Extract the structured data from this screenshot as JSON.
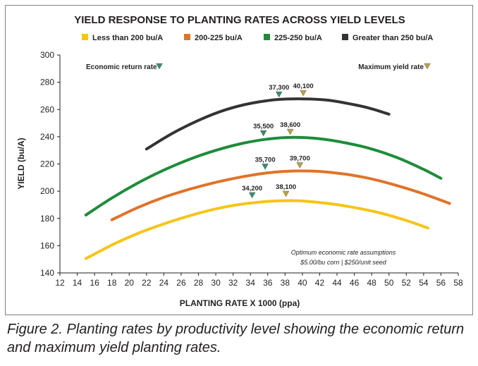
{
  "caption": "Figure 2. Planting rates by productivity level showing the economic return and maximum yield planting rates.",
  "chart_data": {
    "type": "line",
    "title": "YIELD RESPONSE TO PLANTING RATES ACROSS YIELD LEVELS",
    "xlabel": "PLANTING RATE X 1000 (ppa)",
    "ylabel": "YIELD (bu/A)",
    "xlim": [
      12,
      58
    ],
    "ylim": [
      140,
      300
    ],
    "xticks": [
      "12",
      "14",
      "16",
      "18",
      "20",
      "22",
      "24",
      "26",
      "28",
      "30",
      "32",
      "34",
      "36",
      "38",
      "40",
      "42",
      "44",
      "46",
      "48",
      "50",
      "52",
      "54",
      "56",
      "58"
    ],
    "yticks": [
      "140",
      "160",
      "180",
      "200",
      "220",
      "240",
      "260",
      "280",
      "300"
    ],
    "grid": false,
    "legend_position": "top",
    "series": [
      {
        "name": "Less than 200 bu/A",
        "color": "#f5c518",
        "x": [
          15,
          18,
          21,
          24,
          27,
          30,
          33,
          36,
          38,
          40,
          43,
          46,
          49,
          52,
          54.5
        ],
        "y": [
          150.5,
          160.5,
          169,
          176,
          182,
          187,
          190.5,
          192.5,
          193,
          192.8,
          191,
          188,
          184,
          178.5,
          173
        ]
      },
      {
        "name": "200-225 bu/A",
        "color": "#e0732a",
        "x": [
          18,
          21,
          24,
          27,
          30,
          33,
          36,
          39,
          42,
          45,
          48,
          51,
          54,
          57
        ],
        "y": [
          179,
          188,
          195.5,
          201.5,
          206.5,
          210.5,
          213.5,
          214.8,
          214.5,
          212.5,
          209,
          204,
          198,
          191
        ]
      },
      {
        "name": "225-250 bu/A",
        "color": "#1e8c3a",
        "x": [
          15,
          18,
          21,
          24,
          27,
          30,
          33,
          36,
          39,
          42,
          45,
          48,
          51,
          54,
          56
        ],
        "y": [
          182.5,
          195,
          206,
          215.5,
          223.5,
          230,
          235,
          238.3,
          239.5,
          238.5,
          235.5,
          231,
          224.5,
          216,
          209.5
        ]
      },
      {
        "name": "Greater than 250 bu/A",
        "color": "#333333",
        "x": [
          22,
          25,
          28,
          31,
          34,
          37,
          40,
          43,
          46,
          48,
          50
        ],
        "y": [
          231,
          242.5,
          252,
          259.5,
          264.5,
          267.2,
          267.8,
          266.8,
          263.5,
          260.5,
          256.5
        ]
      }
    ],
    "markers": [
      {
        "series": "Less than 200 bu/A",
        "kind": "economic",
        "label": "34,200",
        "x": 34.2,
        "y": 197,
        "color": "#3a8c6e"
      },
      {
        "series": "Less than 200 bu/A",
        "kind": "maximum",
        "label": "38,100",
        "x": 38.1,
        "y": 198,
        "color": "#b8a14a"
      },
      {
        "series": "200-225 bu/A",
        "kind": "economic",
        "label": "35,700",
        "x": 35.7,
        "y": 218,
        "color": "#3a8c6e"
      },
      {
        "series": "200-225 bu/A",
        "kind": "maximum",
        "label": "39,700",
        "x": 39.7,
        "y": 219,
        "color": "#b8a14a"
      },
      {
        "series": "225-250 bu/A",
        "kind": "economic",
        "label": "35,500",
        "x": 35.5,
        "y": 242.5,
        "color": "#3a8c6e"
      },
      {
        "series": "225-250 bu/A",
        "kind": "maximum",
        "label": "38,600",
        "x": 38.6,
        "y": 243.5,
        "color": "#b8a14a"
      },
      {
        "series": "Greater than 250 bu/A",
        "kind": "economic",
        "label": "37,300",
        "x": 37.3,
        "y": 271,
        "color": "#3a8c6e"
      },
      {
        "series": "Greater than 250 bu/A",
        "kind": "maximum",
        "label": "40,100",
        "x": 40.1,
        "y": 272,
        "color": "#b8a14a"
      }
    ],
    "annotations": {
      "economic_label": "Economic return rate",
      "economic_color": "#3a8c6e",
      "maximum_label": "Maximum yield rate",
      "maximum_color": "#b8a14a",
      "assumptions_line1": "Optimum economic rate assumptions",
      "assumptions_line2": "$5.00/bu corn | $250/unit seed"
    }
  }
}
